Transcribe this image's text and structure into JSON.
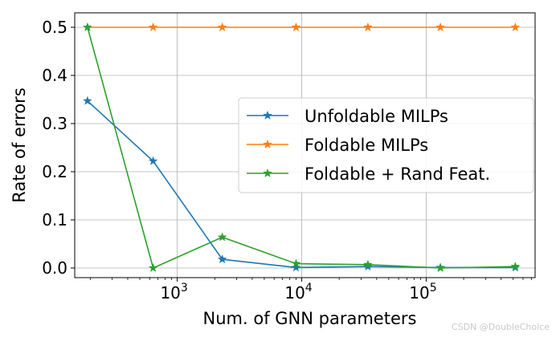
{
  "chart_data": {
    "type": "line",
    "xlabel": "Num. of GNN parameters",
    "ylabel": "Rate of errors",
    "xscale": "log",
    "xlim": [
      150,
      750000
    ],
    "ylim": [
      -0.02,
      0.53
    ],
    "yticks": [
      0.0,
      0.1,
      0.2,
      0.3,
      0.4,
      0.5
    ],
    "ytick_labels": [
      "0.0",
      "0.1",
      "0.2",
      "0.3",
      "0.4",
      "0.5"
    ],
    "xticks": [
      1000,
      10000,
      100000
    ],
    "xtick_labels": [
      {
        "base": "10",
        "exp": "3"
      },
      {
        "base": "10",
        "exp": "4"
      },
      {
        "base": "10",
        "exp": "5"
      }
    ],
    "grid": true,
    "legend_position": "center-right",
    "x": [
      190,
      640,
      2300,
      9000,
      34000,
      130000,
      520000
    ],
    "series": [
      {
        "name": "Unfoldable MILPs",
        "color": "#1f77b4",
        "marker": "star",
        "values": [
          0.347,
          0.222,
          0.018,
          0.001,
          0.003,
          0.001,
          0.001
        ]
      },
      {
        "name": "Foldable MILPs",
        "color": "#ff7f0e",
        "marker": "star",
        "values": [
          0.5,
          0.5,
          0.5,
          0.5,
          0.5,
          0.5,
          0.5
        ]
      },
      {
        "name": "Foldable + Rand Feat.",
        "color": "#2ca02c",
        "marker": "star",
        "values": [
          0.5,
          0.0,
          0.064,
          0.009,
          0.007,
          0.0,
          0.003
        ]
      }
    ]
  },
  "watermark": "CSDN @DoubleChoice"
}
